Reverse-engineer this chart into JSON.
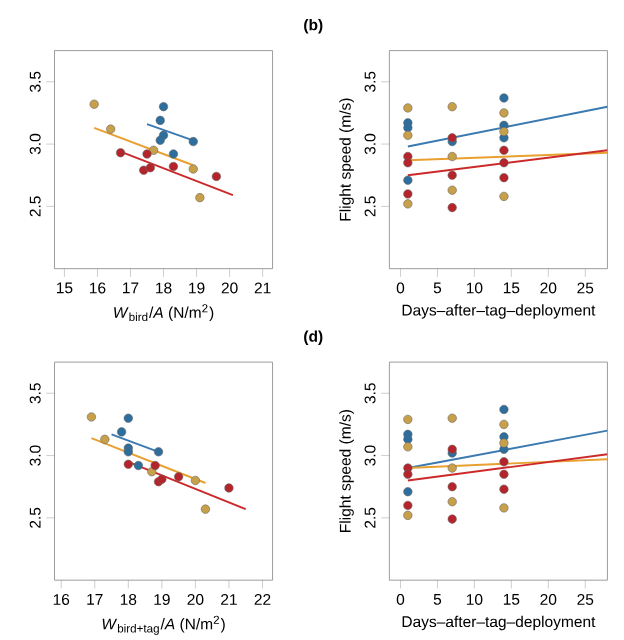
{
  "chart_data": [
    {
      "type": "scatter",
      "xlabel": "*W*$_{bird}$/*A* (N/m$^{2}$)",
      "xlim": [
        14.7,
        21.3
      ],
      "xticks": [
        15,
        16,
        17,
        18,
        19,
        20,
        21
      ],
      "ylim": [
        2.0,
        3.75
      ],
      "yticks": [
        {
          "value": 2.5,
          "label": "2.5"
        },
        {
          "value": 3.0,
          "label": "3.0"
        },
        {
          "value": 3.5,
          "label": "3.5"
        }
      ],
      "marker": "circle",
      "series": [
        {
          "color": "#2c6e9e",
          "x": [
            18.0,
            17.9,
            18.0,
            17.9,
            18.3,
            18.9
          ],
          "values": [
            3.3,
            3.19,
            3.07,
            3.03,
            2.92,
            3.02
          ]
        },
        {
          "color": "#c9a04a",
          "x": [
            15.9,
            16.4,
            17.7,
            18.9,
            19.1
          ],
          "values": [
            3.32,
            3.12,
            2.95,
            2.8,
            2.57
          ]
        },
        {
          "color": "#b5242a",
          "x": [
            16.7,
            17.4,
            17.5,
            17.6,
            18.3,
            19.6
          ],
          "values": [
            2.93,
            2.79,
            2.92,
            2.81,
            2.82,
            2.74
          ]
        },
        {
          "type": "line",
          "marker": "none",
          "color": "#3a7ab0",
          "x": [
            17.5,
            19.0
          ],
          "values": [
            3.16,
            3.02
          ]
        },
        {
          "type": "line",
          "marker": "none",
          "color": "#e8a030",
          "x": [
            15.9,
            18.9
          ],
          "values": [
            3.13,
            2.83
          ]
        },
        {
          "type": "line",
          "marker": "none",
          "color": "#cc2a2a",
          "x": [
            16.6,
            20.1
          ],
          "values": [
            2.95,
            2.59
          ]
        }
      ]
    },
    {
      "type": "scatter",
      "title": "(b)",
      "xlabel": "Days–after–tag–deployment",
      "ylabel": "Flight speed (m/s)",
      "xlim": [
        -1.5,
        28
      ],
      "xticks": [
        0,
        5,
        10,
        15,
        20,
        25
      ],
      "ylim": [
        2.0,
        3.75
      ],
      "yticks": [
        {
          "value": 2.5,
          "label": "2.5"
        },
        {
          "value": 3.0,
          "label": "3.0"
        },
        {
          "value": 3.5,
          "label": "3.5"
        }
      ],
      "marker": "circle",
      "series": [
        {
          "color": "#2c6e9e",
          "x": [
            1,
            1,
            1,
            7,
            14,
            14,
            14
          ],
          "values": [
            3.17,
            3.13,
            2.71,
            3.02,
            3.37,
            3.15,
            3.05
          ]
        },
        {
          "color": "#c9a04a",
          "x": [
            1,
            1,
            1,
            7,
            7,
            7,
            14,
            14,
            14
          ],
          "values": [
            3.29,
            3.07,
            2.52,
            3.3,
            2.63,
            2.9,
            3.25,
            2.58,
            3.1
          ]
        },
        {
          "color": "#b5242a",
          "x": [
            1,
            1,
            1,
            7,
            7,
            7,
            14,
            14,
            14
          ],
          "values": [
            2.9,
            2.85,
            2.6,
            2.75,
            2.49,
            3.05,
            2.85,
            2.73,
            2.95
          ]
        },
        {
          "type": "line",
          "marker": "none",
          "color": "#3a7ab0",
          "x": [
            1,
            28
          ],
          "values": [
            2.98,
            3.3
          ]
        },
        {
          "type": "line",
          "marker": "none",
          "color": "#e8a030",
          "x": [
            1,
            28
          ],
          "values": [
            2.87,
            2.93
          ]
        },
        {
          "type": "line",
          "marker": "none",
          "color": "#cc2a2a",
          "x": [
            1,
            28
          ],
          "values": [
            2.75,
            2.95
          ]
        }
      ]
    },
    {
      "type": "scatter",
      "xlabel": "*W*$_{bird+tag}$/*A* (N/m$^{2}$)",
      "xlim": [
        15.8,
        22.3
      ],
      "xticks": [
        16,
        17,
        18,
        19,
        20,
        21,
        22
      ],
      "ylim": [
        2.0,
        3.75
      ],
      "yticks": [
        {
          "value": 2.5,
          "label": "2.5"
        },
        {
          "value": 3.0,
          "label": "3.0"
        },
        {
          "value": 3.5,
          "label": "3.5"
        }
      ],
      "marker": "circle",
      "series": [
        {
          "color": "#2c6e9e",
          "x": [
            18.0,
            17.8,
            18.0,
            18.0,
            18.3,
            18.9
          ],
          "values": [
            3.3,
            3.19,
            3.06,
            3.03,
            2.92,
            3.03
          ]
        },
        {
          "color": "#c9a04a",
          "x": [
            16.9,
            17.3,
            18.7,
            20.0,
            20.3
          ],
          "values": [
            3.31,
            3.13,
            2.87,
            2.8,
            2.57
          ]
        },
        {
          "color": "#b5242a",
          "x": [
            18.0,
            18.8,
            18.9,
            19.0,
            19.5,
            21.0
          ],
          "values": [
            2.93,
            2.92,
            2.79,
            2.81,
            2.83,
            2.74
          ]
        },
        {
          "type": "line",
          "marker": "none",
          "color": "#3a7ab0",
          "x": [
            17.5,
            19.0
          ],
          "values": [
            3.17,
            3.02
          ]
        },
        {
          "type": "line",
          "marker": "none",
          "color": "#e8a030",
          "x": [
            16.9,
            20.3
          ],
          "values": [
            3.14,
            2.78
          ]
        },
        {
          "type": "line",
          "marker": "none",
          "color": "#cc2a2a",
          "x": [
            18.0,
            21.5
          ],
          "values": [
            2.95,
            2.57
          ]
        }
      ]
    },
    {
      "type": "scatter",
      "title": "(d)",
      "xlabel": "Days–after–tag–deployment",
      "ylabel": "Flight speed (m/s)",
      "xlim": [
        -1.5,
        28
      ],
      "xticks": [
        0,
        5,
        10,
        15,
        20,
        25
      ],
      "ylim": [
        2.0,
        3.75
      ],
      "yticks": [
        {
          "value": 2.5,
          "label": "2.5"
        },
        {
          "value": 3.0,
          "label": "3.0"
        },
        {
          "value": 3.5,
          "label": "3.5"
        }
      ],
      "marker": "circle",
      "series": [
        {
          "color": "#2c6e9e",
          "x": [
            1,
            1,
            1,
            7,
            14,
            14,
            14
          ],
          "values": [
            3.17,
            3.13,
            2.71,
            3.02,
            3.37,
            3.15,
            3.05
          ]
        },
        {
          "color": "#c9a04a",
          "x": [
            1,
            1,
            1,
            7,
            7,
            7,
            14,
            14,
            14
          ],
          "values": [
            3.29,
            3.07,
            2.52,
            3.3,
            2.63,
            2.9,
            3.25,
            2.58,
            3.1
          ]
        },
        {
          "color": "#b5242a",
          "x": [
            1,
            1,
            1,
            7,
            7,
            7,
            14,
            14,
            14
          ],
          "values": [
            2.9,
            2.85,
            2.6,
            2.75,
            2.49,
            3.05,
            2.85,
            2.73,
            2.95
          ]
        },
        {
          "type": "line",
          "marker": "none",
          "color": "#3a7ab0",
          "x": [
            1,
            28
          ],
          "values": [
            2.9,
            3.2
          ]
        },
        {
          "type": "line",
          "marker": "none",
          "color": "#e8a030",
          "x": [
            1,
            28
          ],
          "values": [
            2.9,
            2.97
          ]
        },
        {
          "type": "line",
          "marker": "none",
          "color": "#cc2a2a",
          "x": [
            1,
            28
          ],
          "values": [
            2.8,
            3.01
          ]
        }
      ]
    }
  ]
}
